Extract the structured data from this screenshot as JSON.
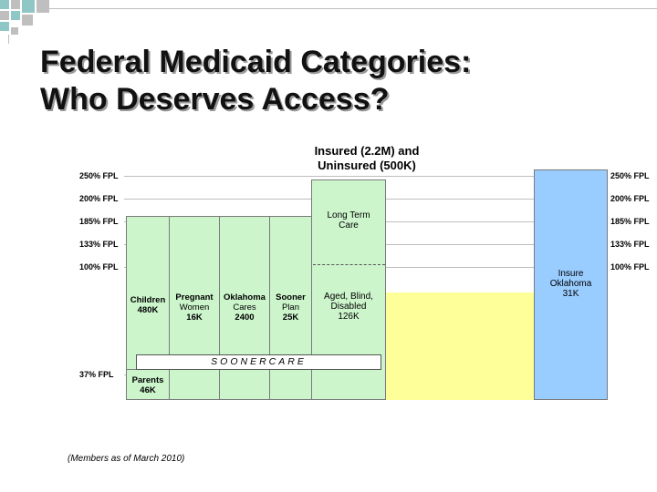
{
  "title_line1": "Federal Medicaid Categories:",
  "title_line2": "Who Deserves Access?",
  "header": {
    "line1": "Insured (2.2M) and",
    "line2": "Uninsured (500K)"
  },
  "fpl_left": [
    "250% FPL",
    "200% FPL",
    "185% FPL",
    "133% FPL",
    "100% FPL",
    "37% FPL"
  ],
  "fpl_right": [
    "250% FPL",
    "200% FPL",
    "185% FPL",
    "133% FPL",
    "100% FPL"
  ],
  "boxes": {
    "children": {
      "name": "Children",
      "count": "480K"
    },
    "pregnant": {
      "name1": "Pregnant",
      "name2": "Women",
      "count": "16K"
    },
    "okcares": {
      "name1": "Oklahoma",
      "name2": "Cares",
      "count": "2400"
    },
    "sooner": {
      "name1": "Sooner",
      "name2": "Plan",
      "count": "25K"
    },
    "ltc": {
      "name1": "Long Term",
      "name2": "Care"
    },
    "abd": {
      "name1": "Aged, Blind,",
      "name2": "Disabled",
      "count": "126K"
    },
    "parents": {
      "name": "Parents",
      "count": "46K"
    },
    "insure": {
      "name1": "Insure",
      "name2": "Oklahoma",
      "count": "31K"
    }
  },
  "soonercare": "SOONERCARE",
  "footnote": "(Members as of March 2010)",
  "colors": {
    "green": "#ccf5cc",
    "yellow": "#ffff99",
    "blue": "#99ccff",
    "corner_teal": "#8fc7c7",
    "corner_gray": "#bfbfbf"
  }
}
